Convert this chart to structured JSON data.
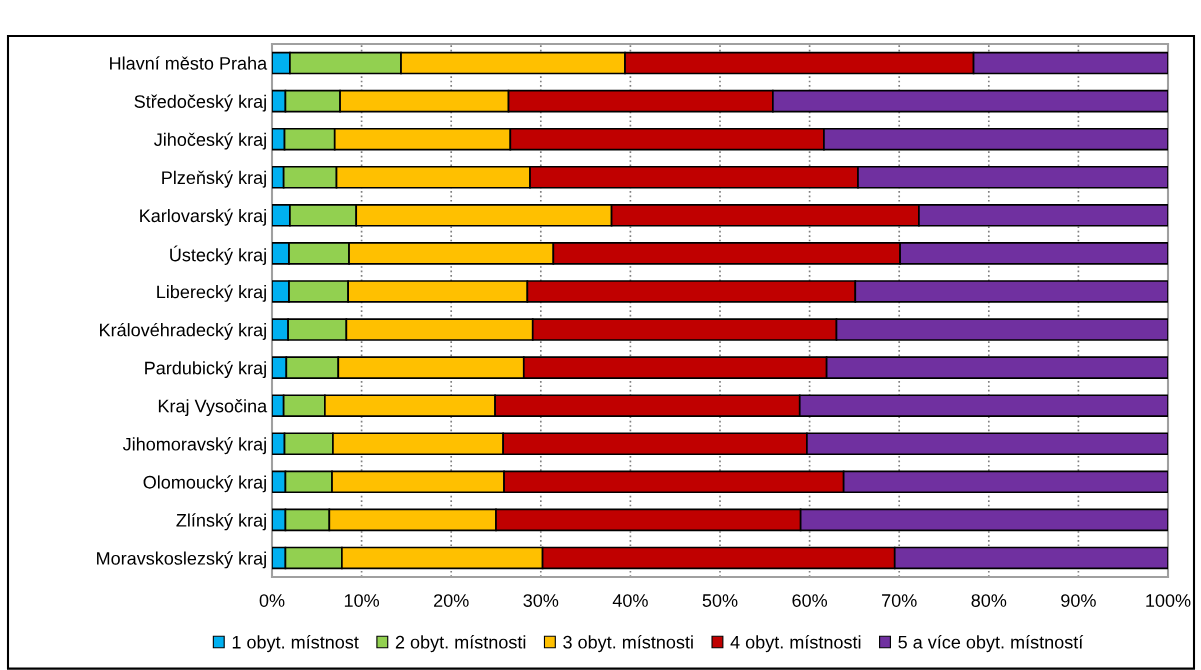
{
  "chart_data": {
    "type": "bar",
    "orientation": "horizontal",
    "stacked": true,
    "categories": [
      "Hlavní město Praha",
      "Středočeský kraj",
      "Jihočeský kraj",
      "Plzeňský kraj",
      "Karlovarský kraj",
      "Ústecký kraj",
      "Liberecký kraj",
      "Královéhradecký kraj",
      "Pardubický kraj",
      "Kraj Vysočina",
      "Jihomoravský kraj",
      "Olomoucký kraj",
      "Zlínský kraj",
      "Moravskoslezský kraj"
    ],
    "series": [
      {
        "name": "1 obyt. místnost",
        "color": "#00b0f0",
        "values": [
          2.0,
          1.5,
          1.4,
          1.3,
          2.0,
          1.9,
          1.9,
          1.8,
          1.6,
          1.3,
          1.4,
          1.5,
          1.5,
          1.5
        ]
      },
      {
        "name": "2 obyt. místnosti",
        "color": "#92d050",
        "values": [
          12.4,
          6.1,
          5.6,
          5.9,
          7.4,
          6.7,
          6.6,
          6.5,
          5.8,
          4.6,
          5.4,
          5.2,
          4.9,
          6.3
        ]
      },
      {
        "name": "3 obyt. místnosti",
        "color": "#ffc000",
        "values": [
          25.0,
          18.8,
          19.6,
          21.6,
          28.5,
          22.8,
          20.0,
          20.8,
          20.7,
          19.0,
          19.0,
          19.2,
          18.6,
          22.4
        ]
      },
      {
        "name": "4 obyt. místnosti",
        "color": "#c00000",
        "values": [
          38.9,
          29.5,
          35.0,
          36.6,
          34.3,
          38.7,
          36.6,
          33.9,
          33.8,
          34.0,
          33.9,
          37.9,
          34.0,
          39.3
        ]
      },
      {
        "name": "5 a více obyt. místností",
        "color": "#7030a0",
        "values": [
          21.7,
          44.1,
          38.4,
          34.6,
          27.8,
          29.9,
          34.9,
          37.0,
          38.1,
          41.1,
          40.3,
          36.2,
          41.0,
          30.5
        ]
      }
    ],
    "xlim": [
      0,
      100
    ],
    "xticks": [
      {
        "value": 0,
        "label": "0%"
      },
      {
        "value": 10,
        "label": "10%"
      },
      {
        "value": 20,
        "label": "20%"
      },
      {
        "value": 30,
        "label": "30%"
      },
      {
        "value": 40,
        "label": "40%"
      },
      {
        "value": 50,
        "label": "50%"
      },
      {
        "value": 60,
        "label": "60%"
      },
      {
        "value": 70,
        "label": "70%"
      },
      {
        "value": 80,
        "label": "80%"
      },
      {
        "value": 90,
        "label": "90%"
      },
      {
        "value": 100,
        "label": "100%"
      }
    ],
    "grid": "x",
    "legend": "bottom"
  }
}
